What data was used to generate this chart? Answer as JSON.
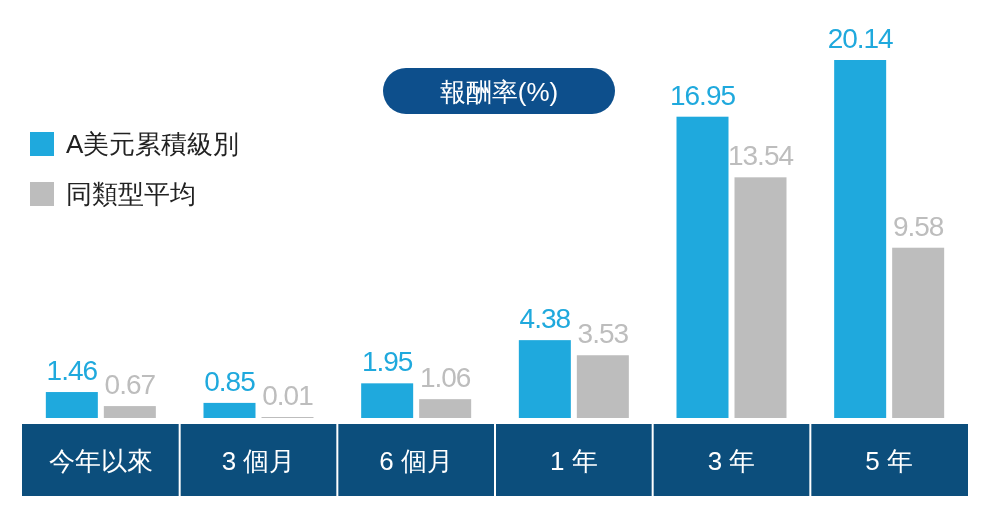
{
  "chart_data": {
    "type": "bar",
    "title": "報酬率(%)",
    "categories": [
      "今年以來",
      "3 個月",
      "6 個月",
      "1 年",
      "3 年",
      "5 年"
    ],
    "series": [
      {
        "name": "A美元累積級別",
        "color": "#1fa9dd",
        "values": [
          1.46,
          0.85,
          1.95,
          4.38,
          16.95,
          20.14
        ]
      },
      {
        "name": "同類型平均",
        "color": "#bdbdbd",
        "values": [
          0.67,
          0.01,
          1.06,
          3.53,
          13.54,
          9.58
        ]
      }
    ],
    "data_labels": true,
    "legend": "top left",
    "grid": false
  }
}
